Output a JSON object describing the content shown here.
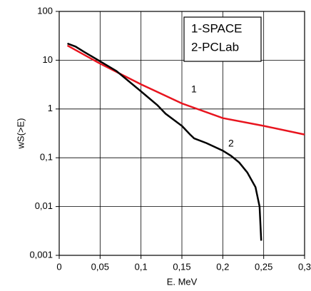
{
  "chart_data": {
    "type": "line",
    "x_label": "E. MeV",
    "y_label": "wS(>E)",
    "log_y": true,
    "grid": true,
    "xlim": [
      0,
      0.3
    ],
    "ylim": [
      0.001,
      100
    ],
    "xticks": [
      0,
      {
        "value": 0.05,
        "label": "0,05"
      },
      {
        "value": 0.1,
        "label": "0,1"
      },
      {
        "value": 0.15,
        "label": "0,15"
      },
      {
        "value": 0.2,
        "label": "0,2"
      },
      {
        "value": 0.25,
        "label": "0,25"
      },
      {
        "value": 0.3,
        "label": "0,3"
      }
    ],
    "yticks": [
      {
        "value": 0.001,
        "label": "0,001"
      },
      {
        "value": 0.01,
        "label": "0,01"
      },
      {
        "value": 0.1,
        "label": "0,1"
      },
      1,
      10,
      100
    ],
    "series": [
      {
        "name": "1-SPACE",
        "color": "#e8141e",
        "x": [
          0.01,
          0.05,
          0.1,
          0.15,
          0.2,
          0.25,
          0.3
        ],
        "values": [
          20,
          8.5,
          3.2,
          1.3,
          0.65,
          0.45,
          0.3
        ]
      },
      {
        "name": "2-PCLab",
        "color": "#000000",
        "x": [
          0.01,
          0.02,
          0.03,
          0.05,
          0.07,
          0.1,
          0.12,
          0.13,
          0.15,
          0.16,
          0.165,
          0.18,
          0.2,
          0.21,
          0.22,
          0.23,
          0.24,
          0.245,
          0.247
        ],
        "values": [
          22,
          19,
          15,
          9.5,
          6,
          2.3,
          1.2,
          0.8,
          0.45,
          0.3,
          0.25,
          0.2,
          0.14,
          0.11,
          0.08,
          0.05,
          0.025,
          0.01,
          0.002
        ]
      }
    ],
    "annotations": [
      {
        "text": "1"
      },
      {
        "text": "2"
      }
    ]
  }
}
